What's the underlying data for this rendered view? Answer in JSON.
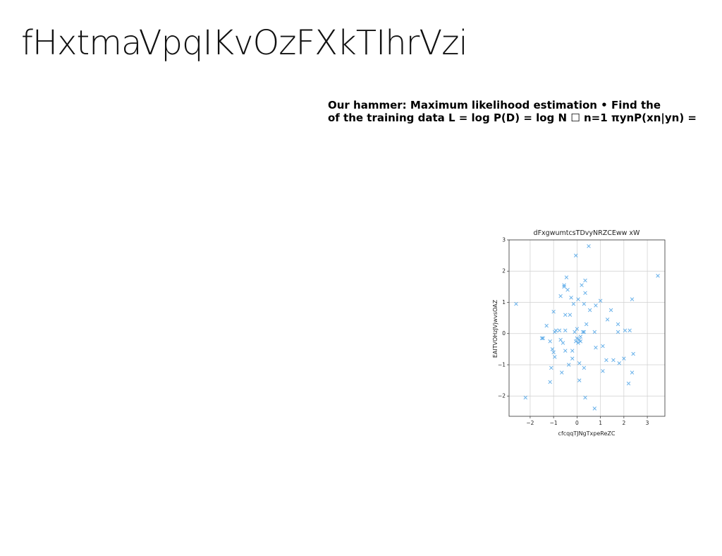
{
  "slide": {
    "title": "fHxtmaVpqIKvOzFXkTIhrVzi",
    "text_lines": [
      "Our hammer: Maximum likelihood estimation • Find the",
      "of the training data L = log P(D) = log N ☐ n=1 πynP(xn|yn) ="
    ]
  },
  "chart_data": {
    "type": "scatter",
    "title": "dFxgwumtcsTDvyNRZCEww xW",
    "xlabel": "cfcqqTJNgTxpeReZC",
    "ylabel": "EAITVOHzJVjwvsOAZ",
    "xlim": [
      -2.9,
      3.75
    ],
    "ylim": [
      -2.65,
      3.0
    ],
    "xticks": [
      -2,
      -1,
      0,
      1,
      2,
      3
    ],
    "yticks": [
      -2,
      -1,
      0,
      1,
      2,
      3
    ],
    "tick_labels": {
      "x": [
        "−2",
        "−1",
        "0",
        "1",
        "2",
        "3"
      ],
      "y": [
        "−2",
        "−1",
        "0",
        "1",
        "2",
        "3"
      ]
    },
    "grid": true,
    "marker": "x",
    "color": "#4da3e6",
    "points": [
      [
        -2.6,
        0.95
      ],
      [
        -2.2,
        -2.05
      ],
      [
        -1.5,
        -0.15
      ],
      [
        -1.45,
        -0.15
      ],
      [
        -1.3,
        0.25
      ],
      [
        -1.15,
        -0.25
      ],
      [
        -1.15,
        -1.55
      ],
      [
        -1.1,
        -1.1
      ],
      [
        -1.05,
        -0.5
      ],
      [
        -1.0,
        0.7
      ],
      [
        -1.0,
        -0.6
      ],
      [
        -0.95,
        -0.75
      ],
      [
        -0.95,
        0.05
      ],
      [
        -0.9,
        0.1
      ],
      [
        -0.75,
        0.1
      ],
      [
        -0.7,
        -0.2
      ],
      [
        -0.7,
        1.2
      ],
      [
        -0.65,
        -1.25
      ],
      [
        -0.6,
        -0.3
      ],
      [
        -0.55,
        1.5
      ],
      [
        -0.55,
        1.55
      ],
      [
        -0.5,
        -0.55
      ],
      [
        -0.5,
        0.1
      ],
      [
        -0.5,
        0.6
      ],
      [
        -0.45,
        1.8
      ],
      [
        -0.4,
        1.4
      ],
      [
        -0.35,
        -1.0
      ],
      [
        -0.3,
        0.6
      ],
      [
        -0.25,
        1.15
      ],
      [
        -0.2,
        -0.55
      ],
      [
        -0.2,
        -0.8
      ],
      [
        -0.15,
        0.95
      ],
      [
        -0.1,
        0.05
      ],
      [
        -0.05,
        -0.25
      ],
      [
        -0.05,
        2.5
      ],
      [
        0.0,
        0.15
      ],
      [
        0.0,
        -0.15
      ],
      [
        0.05,
        -0.3
      ],
      [
        0.05,
        1.1
      ],
      [
        0.1,
        -0.2
      ],
      [
        0.1,
        -1.5
      ],
      [
        0.1,
        -0.95
      ],
      [
        0.15,
        -0.1
      ],
      [
        0.15,
        -0.25
      ],
      [
        0.2,
        1.55
      ],
      [
        0.25,
        0.05
      ],
      [
        0.3,
        0.95
      ],
      [
        0.3,
        -1.1
      ],
      [
        0.3,
        0.05
      ],
      [
        0.35,
        1.7
      ],
      [
        0.35,
        1.3
      ],
      [
        0.35,
        -2.05
      ],
      [
        0.4,
        0.3
      ],
      [
        0.5,
        2.8
      ],
      [
        0.55,
        0.75
      ],
      [
        0.75,
        0.05
      ],
      [
        0.75,
        -2.4
      ],
      [
        0.8,
        -0.45
      ],
      [
        0.8,
        0.9
      ],
      [
        1.0,
        1.05
      ],
      [
        1.1,
        -1.2
      ],
      [
        1.1,
        -0.4
      ],
      [
        1.25,
        -0.85
      ],
      [
        1.3,
        0.45
      ],
      [
        1.45,
        0.75
      ],
      [
        1.55,
        -0.85
      ],
      [
        1.75,
        0.05
      ],
      [
        1.75,
        0.3
      ],
      [
        1.8,
        -0.95
      ],
      [
        2.0,
        -0.8
      ],
      [
        2.05,
        0.1
      ],
      [
        2.2,
        -1.6
      ],
      [
        2.25,
        0.1
      ],
      [
        2.35,
        -1.25
      ],
      [
        2.35,
        1.1
      ],
      [
        2.4,
        -0.65
      ],
      [
        3.45,
        1.85
      ]
    ]
  }
}
